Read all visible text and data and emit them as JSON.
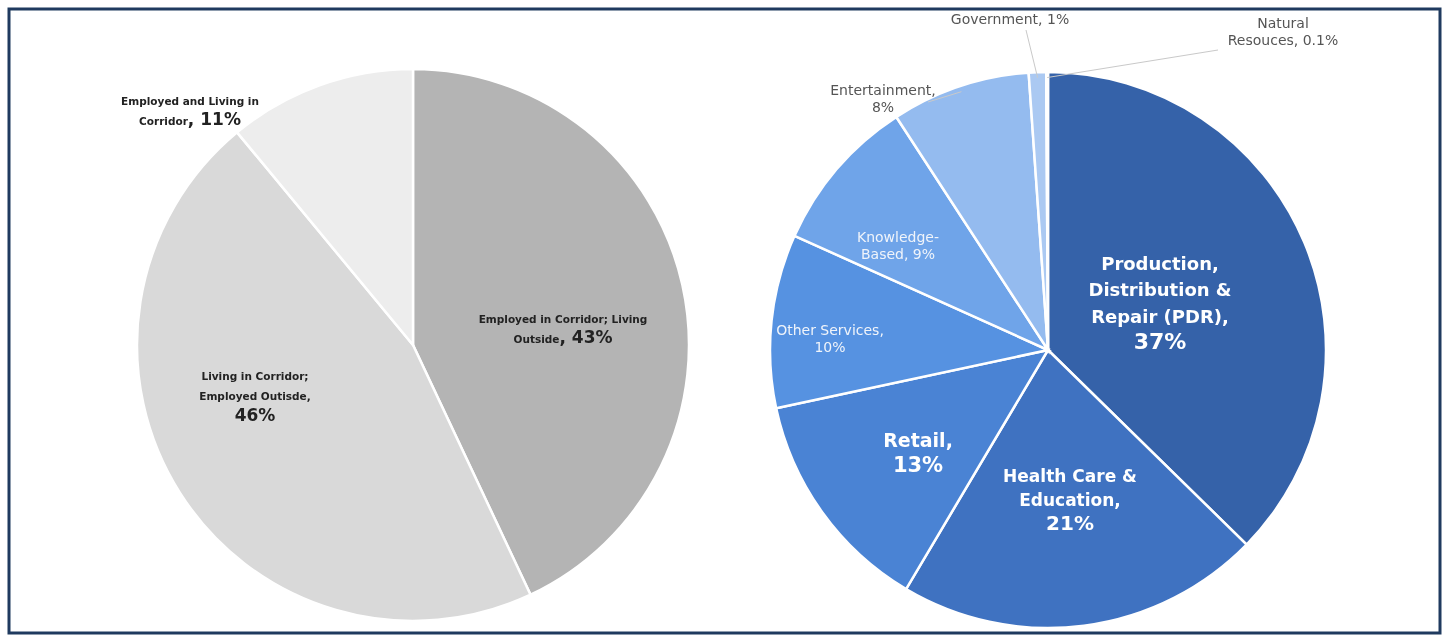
{
  "chart_data": [
    {
      "type": "pie",
      "categories": [
        "Employed in Corridor; Living Outside",
        "Living in Corridor; Employed Outisde",
        "Employed and Living in Corridor"
      ],
      "values": [
        43,
        46,
        11
      ],
      "value_labels": [
        ", 43%",
        ", 46%",
        ", 11%"
      ],
      "colors": [
        "#b4b4b4",
        "#d9d9d9",
        "#ededed"
      ]
    },
    {
      "type": "pie",
      "categories": [
        "Production, Distribution & Repair (PDR)",
        "Health Care & Education",
        "Retail",
        "Other Services",
        "Knowledge-Based",
        "Entertainment",
        "Government",
        "Natural Resouces"
      ],
      "values": [
        37,
        21,
        13,
        10,
        9,
        8,
        1,
        0.1
      ],
      "value_labels": [
        ", 37%",
        ", 21%",
        ", 13%",
        ", 10%",
        ", 9%",
        ", 8%",
        ", 1%",
        ", 0.1%"
      ],
      "colors": [
        "#3562a9",
        "#3f72c1",
        "#4a83d4",
        "#5692e1",
        "#6fa4e9",
        "#94bbef",
        "#abc9f2",
        "#c6daf6"
      ]
    }
  ]
}
